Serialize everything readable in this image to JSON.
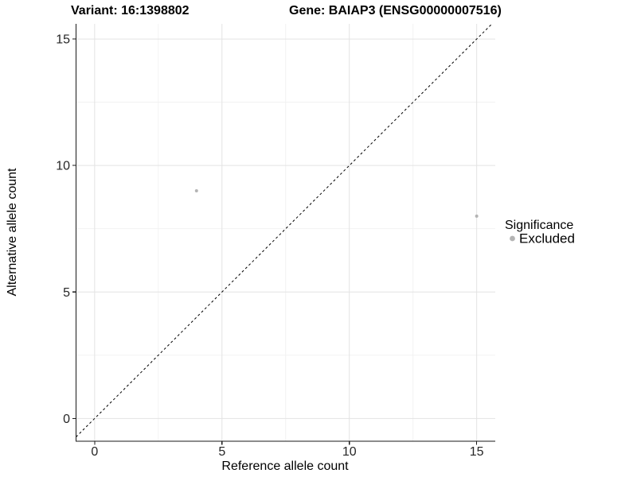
{
  "chart_data": {
    "type": "scatter",
    "title_left": "Variant: 16:1398802",
    "title_right": "Gene: BAIAP3 (ENSG00000007516)",
    "xlabel": "Reference allele count",
    "ylabel": "Alternative allele count",
    "xlim": [
      -0.73,
      15.73
    ],
    "ylim": [
      -0.9,
      15.6
    ],
    "xticks": [
      0,
      5,
      10,
      15
    ],
    "yticks": [
      0,
      5,
      10,
      15
    ],
    "grid": "major+minor",
    "identity_line": {
      "style": "dashed",
      "slope": 1,
      "intercept": 0,
      "color": "#000000"
    },
    "points": [
      {
        "x": 4,
        "y": 9,
        "series": "Excluded"
      },
      {
        "x": 15,
        "y": 8,
        "series": "Excluded"
      }
    ],
    "legend": {
      "position": "right",
      "title": "Significance",
      "items": [
        {
          "label": "Excluded",
          "color": "#b4b4b4"
        }
      ]
    },
    "colors": {
      "background": "#ffffff",
      "grid_major": "#e3e3e3",
      "grid_minor": "#f1f1f1",
      "axis": "#1a1a1a",
      "point": "#b4b4b4"
    }
  }
}
